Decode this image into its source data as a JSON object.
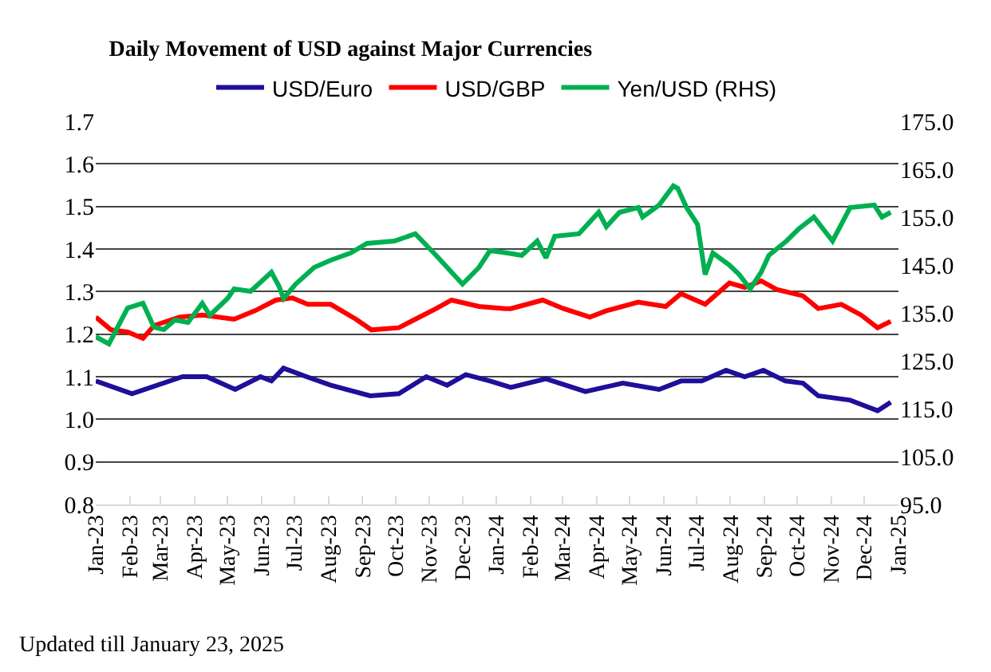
{
  "chart_data": {
    "type": "line",
    "title": "Daily Movement of USD against Major Currencies",
    "annotations": [
      "Updated till January 23, 2025"
    ],
    "legend": "top",
    "grid": "y",
    "marker": "none",
    "line_style": "solid",
    "xlim": [
      "2023-01-01",
      "2025-01-01"
    ],
    "xticks": [
      {
        "value": "2023-01-01",
        "label": "Jan-23"
      },
      {
        "value": "2023-02-01",
        "label": "Feb-23"
      },
      {
        "value": "2023-03-01",
        "label": "Mar-23"
      },
      {
        "value": "2023-04-01",
        "label": "Apr-23"
      },
      {
        "value": "2023-05-01",
        "label": "May-23"
      },
      {
        "value": "2023-06-01",
        "label": "Jun-23"
      },
      {
        "value": "2023-07-01",
        "label": "Jul-23"
      },
      {
        "value": "2023-08-01",
        "label": "Aug-23"
      },
      {
        "value": "2023-09-01",
        "label": "Sep-23"
      },
      {
        "value": "2023-10-01",
        "label": "Oct-23"
      },
      {
        "value": "2023-11-01",
        "label": "Nov-23"
      },
      {
        "value": "2023-12-01",
        "label": "Dec-23"
      },
      {
        "value": "2024-01-01",
        "label": "Jan-24"
      },
      {
        "value": "2024-02-01",
        "label": "Feb-24"
      },
      {
        "value": "2024-03-01",
        "label": "Mar-24"
      },
      {
        "value": "2024-04-01",
        "label": "Apr-24"
      },
      {
        "value": "2024-05-01",
        "label": "May-24"
      },
      {
        "value": "2024-06-01",
        "label": "Jun-24"
      },
      {
        "value": "2024-07-01",
        "label": "Jul-24"
      },
      {
        "value": "2024-08-01",
        "label": "Aug-24"
      },
      {
        "value": "2024-09-01",
        "label": "Sep-24"
      },
      {
        "value": "2024-10-01",
        "label": "Oct-24"
      },
      {
        "value": "2024-11-01",
        "label": "Nov-24"
      },
      {
        "value": "2024-12-01",
        "label": "Dec-24"
      },
      {
        "value": "2025-01-01",
        "label": "Jan-25"
      }
    ],
    "ylim": [
      0.8,
      1.7
    ],
    "yticks": [
      {
        "value": 0.8,
        "label": "0.8"
      },
      {
        "value": 0.9,
        "label": "0.9"
      },
      {
        "value": 1.0,
        "label": "1.0"
      },
      {
        "value": 1.1,
        "label": "1.1"
      },
      {
        "value": 1.2,
        "label": "1.2"
      },
      {
        "value": 1.3,
        "label": "1.3"
      },
      {
        "value": 1.4,
        "label": "1.4"
      },
      {
        "value": 1.5,
        "label": "1.5"
      },
      {
        "value": 1.6,
        "label": "1.6"
      },
      {
        "value": 1.7,
        "label": "1.7"
      }
    ],
    "y2lim": [
      95,
      175
    ],
    "y2ticks": [
      {
        "value": 95,
        "label": "95.0"
      },
      {
        "value": 105,
        "label": "105.0"
      },
      {
        "value": 115,
        "label": "115.0"
      },
      {
        "value": 125,
        "label": "125.0"
      },
      {
        "value": 135,
        "label": "135.0"
      },
      {
        "value": 145,
        "label": "145.0"
      },
      {
        "value": 155,
        "label": "155.0"
      },
      {
        "value": 165,
        "label": "165.0"
      },
      {
        "value": 175,
        "label": "175.0"
      }
    ],
    "series": [
      {
        "name": "USD/Euro",
        "color": "#1f0f9a",
        "x": [
          "2023-01-01",
          "2023-02-03",
          "2023-03-21",
          "2023-04-12",
          "2023-05-08",
          "2023-05-31",
          "2023-06-10",
          "2023-06-21",
          "2023-07-12",
          "2023-08-03",
          "2023-09-08",
          "2023-10-04",
          "2023-10-29",
          "2023-11-17",
          "2023-12-04",
          "2023-12-26",
          "2024-01-14",
          "2024-02-15",
          "2024-03-22",
          "2024-04-25",
          "2024-05-28",
          "2024-06-17",
          "2024-07-06",
          "2024-07-28",
          "2024-08-14",
          "2024-08-31",
          "2024-09-20",
          "2024-10-06",
          "2024-10-20",
          "2024-11-18",
          "2024-12-13",
          "2024-12-25"
        ],
        "values": [
          1.09,
          1.06,
          1.1,
          1.1,
          1.07,
          1.1,
          1.09,
          1.12,
          1.1,
          1.08,
          1.055,
          1.06,
          1.1,
          1.08,
          1.105,
          1.09,
          1.075,
          1.095,
          1.065,
          1.085,
          1.07,
          1.09,
          1.09,
          1.115,
          1.1,
          1.115,
          1.09,
          1.085,
          1.055,
          1.045,
          1.02,
          1.04
        ]
      },
      {
        "name": "USD/GBP",
        "color": "#ff0000",
        "x": [
          "2023-01-01",
          "2023-01-15",
          "2023-01-30",
          "2023-02-13",
          "2023-02-23",
          "2023-03-18",
          "2023-04-08",
          "2023-05-07",
          "2023-05-26",
          "2023-06-14",
          "2023-06-29",
          "2023-07-13",
          "2023-08-03",
          "2023-08-26",
          "2023-09-09",
          "2023-10-04",
          "2023-10-19",
          "2023-11-07",
          "2023-11-21",
          "2023-12-16",
          "2024-01-09",
          "2024-01-14",
          "2024-02-12",
          "2024-03-02",
          "2024-03-26",
          "2024-04-10",
          "2024-05-09",
          "2024-06-03",
          "2024-06-17",
          "2024-07-09",
          "2024-07-31",
          "2024-08-14",
          "2024-08-29",
          "2024-09-12",
          "2024-10-06",
          "2024-10-20",
          "2024-11-10",
          "2024-11-28",
          "2024-12-13",
          "2024-12-25"
        ],
        "values": [
          1.24,
          1.21,
          1.205,
          1.19,
          1.22,
          1.24,
          1.245,
          1.235,
          1.255,
          1.28,
          1.285,
          1.27,
          1.27,
          1.235,
          1.21,
          1.215,
          1.235,
          1.26,
          1.28,
          1.265,
          1.26,
          1.26,
          1.28,
          1.26,
          1.24,
          1.255,
          1.275,
          1.265,
          1.295,
          1.27,
          1.32,
          1.31,
          1.325,
          1.305,
          1.29,
          1.26,
          1.27,
          1.245,
          1.215,
          1.23
        ]
      },
      {
        "name": "Yen/USD (RHS)",
        "color": "#00b050",
        "axis": "y2",
        "x": [
          "2023-01-01",
          "2023-01-13",
          "2023-01-30",
          "2023-02-13",
          "2023-02-23",
          "2023-03-04",
          "2023-03-14",
          "2023-03-26",
          "2023-04-08",
          "2023-04-15",
          "2023-05-01",
          "2023-05-07",
          "2023-05-22",
          "2023-06-10",
          "2023-06-17",
          "2023-06-21",
          "2023-07-02",
          "2023-07-19",
          "2023-08-03",
          "2023-08-21",
          "2023-09-05",
          "2023-09-30",
          "2023-10-19",
          "2023-11-07",
          "2023-11-21",
          "2023-12-01",
          "2023-12-16",
          "2023-12-26",
          "2024-01-11",
          "2024-01-24",
          "2024-02-07",
          "2024-02-15",
          "2024-02-23",
          "2024-03-16",
          "2024-04-03",
          "2024-04-10",
          "2024-04-22",
          "2024-05-09",
          "2024-05-13",
          "2024-05-28",
          "2024-06-10",
          "2024-06-14",
          "2024-06-22",
          "2024-07-02",
          "2024-07-09",
          "2024-07-16",
          "2024-07-31",
          "2024-08-09",
          "2024-08-19",
          "2024-08-29",
          "2024-09-05",
          "2024-09-21",
          "2024-10-02",
          "2024-10-16",
          "2024-11-02",
          "2024-11-18",
          "2024-12-10",
          "2024-12-17",
          "2024-12-25"
        ],
        "values": [
          130,
          128.5,
          136,
          137,
          132,
          131.5,
          133.5,
          133,
          137,
          134.5,
          138,
          140,
          139.5,
          143.5,
          140.5,
          138,
          141,
          144.5,
          146,
          147.5,
          149.5,
          150,
          151.5,
          147,
          143.5,
          141,
          144.5,
          148,
          147.5,
          147,
          150,
          146.5,
          151,
          151.5,
          156,
          153,
          156,
          157,
          155,
          157.5,
          161.5,
          161,
          157,
          153.5,
          143,
          147.5,
          145,
          143,
          140,
          143.5,
          147,
          150,
          152.5,
          155,
          150,
          157,
          157.5,
          155,
          156
        ]
      }
    ]
  }
}
